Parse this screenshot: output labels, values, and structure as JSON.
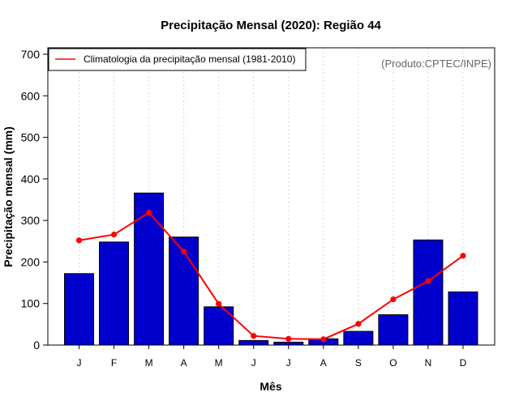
{
  "chart_data": {
    "type": "bar",
    "title": "Precipitação Mensal (2020): Região 44",
    "xlabel": "Mês",
    "ylabel": "Precipitação mensal (mm)",
    "ylim": [
      0,
      700
    ],
    "yticks": [
      0,
      100,
      200,
      300,
      400,
      500,
      600,
      700
    ],
    "categories": [
      "J",
      "F",
      "M",
      "A",
      "M",
      "J",
      "J",
      "A",
      "S",
      "O",
      "N",
      "D"
    ],
    "series": [
      {
        "name": "Precipitação mensal 2020",
        "type": "bar",
        "color": "#0000CD",
        "values": [
          172,
          248,
          366,
          260,
          92,
          11,
          7,
          15,
          33,
          73,
          253,
          128
        ]
      },
      {
        "name": "Climatologia da precipitação mensal (1981-2010)",
        "type": "line",
        "color": "#FF0000",
        "values": [
          252,
          266,
          319,
          225,
          99,
          22,
          15,
          14,
          51,
          110,
          154,
          215
        ]
      }
    ],
    "grid": "vertical dotted",
    "legend_position": "top-left",
    "annotation": "(Produto:CPTEC/INPE)"
  }
}
